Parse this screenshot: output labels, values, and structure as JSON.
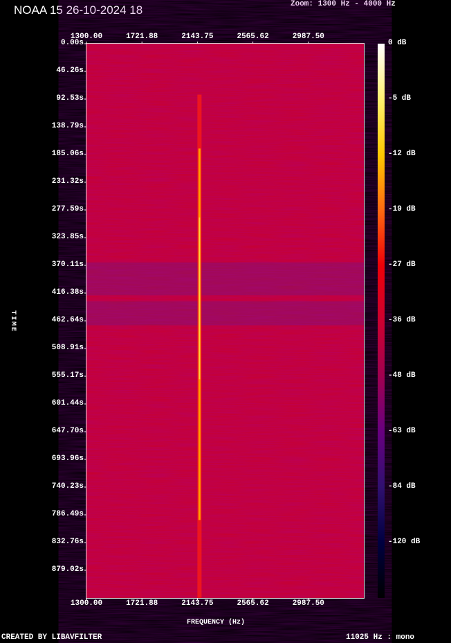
{
  "header": {
    "title": "NOAA 15 26-10-2024 18",
    "zoom": "Zoom: 1300 Hz - 4000 Hz"
  },
  "footer": {
    "created": "CREATED BY LIBAVFILTER",
    "rate": "11025 Hz : mono"
  },
  "chart_data": {
    "type": "heatmap",
    "xlabel": "FREQUENCY (Hz)",
    "ylabel": "TIME",
    "xlim": [
      1300,
      4000
    ],
    "ylim": [
      0,
      925
    ],
    "x_ticks": [
      "1300.00",
      "1721.88",
      "2143.75",
      "2565.62",
      "2987.50"
    ],
    "y_ticks": [
      "0.00s",
      "46.26s",
      "92.53s",
      "138.79s",
      "185.06s",
      "231.32s",
      "277.59s",
      "323.85s",
      "370.11s",
      "416.38s",
      "462.64s",
      "508.91s",
      "555.17s",
      "601.44s",
      "647.70s",
      "693.96s",
      "740.23s",
      "786.49s",
      "832.76s",
      "879.02s"
    ],
    "colorbar": {
      "ticks": [
        "0 dB",
        "-5 dB",
        "-12 dB",
        "-19 dB",
        "-27 dB",
        "-36 dB",
        "-48 dB",
        "-63 dB",
        "-84 dB",
        "-120 dB"
      ],
      "colors": [
        "#ffffff",
        "#fff070",
        "#ffc800",
        "#ff6a10",
        "#ee0008",
        "#cc0030",
        "#a00050",
        "#680080",
        "#301070",
        "#000040",
        "#000000"
      ]
    },
    "background_level_db": -33,
    "signal": {
      "frequency_hz": 2400,
      "start_s": 85,
      "end_s": 925,
      "peak_db": -15
    },
    "weak_bands_s": [
      [
        365,
        420
      ],
      [
        430,
        470
      ]
    ]
  }
}
